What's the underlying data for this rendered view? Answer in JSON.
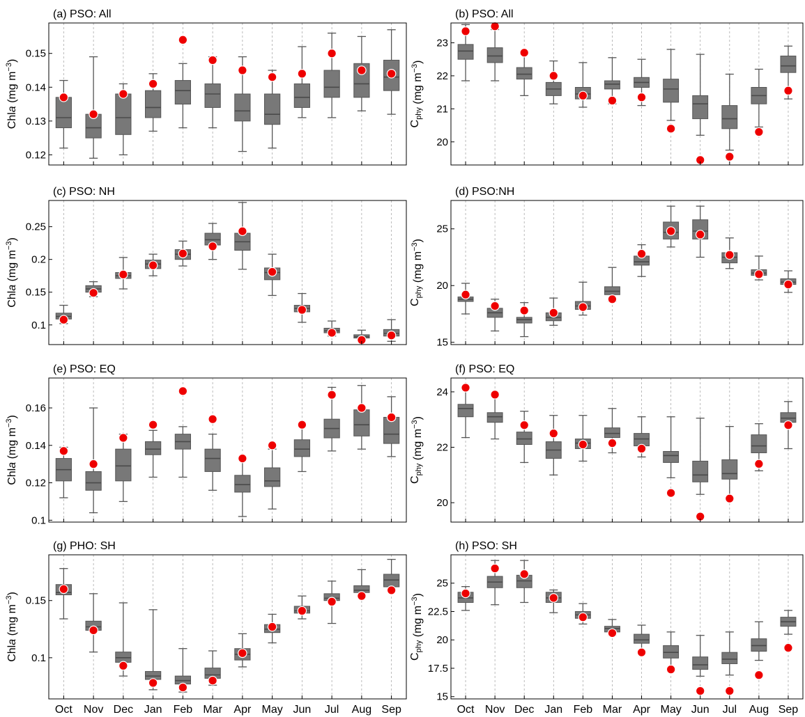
{
  "figure": {
    "months": [
      "Oct",
      "Nov",
      "Dec",
      "Jan",
      "Feb",
      "Mar",
      "Apr",
      "May",
      "Jun",
      "Jul",
      "Aug",
      "Sep"
    ],
    "chla_ylabel": {
      "pre": "Chl",
      "italic": "a",
      "post": "  (mg m",
      "sup": "−3",
      "end": ")"
    },
    "cphy_ylabel": {
      "pre": "C",
      "sub": "phy",
      "post": " (mg m",
      "sup": "−3",
      "end": ")"
    },
    "colors": {
      "box": "#787878",
      "box_edge": "#555555",
      "median": "#4a4a4a",
      "whisker": "#555555",
      "marker": "#ee0000",
      "marker_edge": "#ffffff",
      "grid": "#aaaaaa"
    }
  },
  "chart_data": [
    {
      "type": "box",
      "title": "(a) PSO: All",
      "ylabel_kind": "chla",
      "ylim": [
        0.117,
        0.159
      ],
      "yticks": [
        0.12,
        0.13,
        0.14,
        0.15
      ],
      "ytick_labels": [
        "0.12",
        "0.13",
        "0.14",
        "0.15"
      ],
      "categories": [
        "Oct",
        "Nov",
        "Dec",
        "Jan",
        "Feb",
        "Mar",
        "Apr",
        "May",
        "Jun",
        "Jul",
        "Aug",
        "Sep"
      ],
      "whisker_low": [
        0.122,
        0.119,
        0.12,
        0.127,
        0.128,
        0.128,
        0.121,
        0.122,
        0.131,
        0.131,
        0.133,
        0.132
      ],
      "q1": [
        0.128,
        0.125,
        0.126,
        0.131,
        0.135,
        0.134,
        0.13,
        0.129,
        0.134,
        0.137,
        0.137,
        0.139
      ],
      "median": [
        0.131,
        0.128,
        0.131,
        0.134,
        0.139,
        0.138,
        0.133,
        0.132,
        0.137,
        0.14,
        0.141,
        0.143
      ],
      "q3": [
        0.137,
        0.132,
        0.138,
        0.139,
        0.142,
        0.141,
        0.138,
        0.138,
        0.141,
        0.145,
        0.147,
        0.148
      ],
      "whisker_high": [
        0.142,
        0.149,
        0.141,
        0.144,
        0.147,
        0.149,
        0.149,
        0.145,
        0.152,
        0.156,
        0.155,
        0.157
      ],
      "markers": [
        0.137,
        0.132,
        0.138,
        0.141,
        0.154,
        0.148,
        0.145,
        0.143,
        0.144,
        0.15,
        0.145,
        0.144
      ]
    },
    {
      "type": "box",
      "title": "(b) PSO: All",
      "ylabel_kind": "cphy",
      "ylim": [
        19.3,
        23.6
      ],
      "yticks": [
        20,
        21,
        22,
        23
      ],
      "ytick_labels": [
        "20",
        "21",
        "22",
        "23"
      ],
      "categories": [
        "Oct",
        "Nov",
        "Dec",
        "Jan",
        "Feb",
        "Mar",
        "Apr",
        "May",
        "Jun",
        "Jul",
        "Aug",
        "Sep"
      ],
      "whisker_low": [
        21.85,
        21.85,
        21.4,
        21.15,
        21.05,
        21.15,
        21.1,
        20.65,
        20.2,
        19.75,
        20.45,
        21.3
      ],
      "q1": [
        22.5,
        22.4,
        21.9,
        21.4,
        21.3,
        21.6,
        21.65,
        21.2,
        20.7,
        20.4,
        21.15,
        22.1
      ],
      "median": [
        22.75,
        22.6,
        22.05,
        21.6,
        21.45,
        21.75,
        21.8,
        21.6,
        21.15,
        20.7,
        21.4,
        22.3
      ],
      "q3": [
        22.95,
        22.85,
        22.25,
        21.8,
        21.65,
        21.85,
        21.95,
        21.9,
        21.4,
        21.1,
        21.65,
        22.6
      ],
      "whisker_high": [
        23.55,
        23.4,
        22.75,
        22.45,
        22.4,
        22.55,
        22.5,
        22.8,
        22.65,
        22.05,
        22.2,
        22.9
      ],
      "markers": [
        23.35,
        23.5,
        22.7,
        22.0,
        21.4,
        21.25,
        21.35,
        20.4,
        19.45,
        19.55,
        20.3,
        21.55
      ]
    },
    {
      "type": "box",
      "title": "(c) PSO: NH",
      "ylabel_kind": "chla",
      "ylim": [
        0.07,
        0.29
      ],
      "yticks": [
        0.1,
        0.15,
        0.2,
        0.25
      ],
      "ytick_labels": [
        "0.1",
        "0.15",
        "0.2",
        "0.25"
      ],
      "categories": [
        "Oct",
        "Nov",
        "Dec",
        "Jan",
        "Feb",
        "Mar",
        "Apr",
        "May",
        "Jun",
        "Jul",
        "Aug",
        "Sep"
      ],
      "whisker_low": [
        0.102,
        0.143,
        0.155,
        0.175,
        0.19,
        0.2,
        0.185,
        0.145,
        0.104,
        0.083,
        0.075,
        0.075
      ],
      "q1": [
        0.109,
        0.15,
        0.171,
        0.186,
        0.2,
        0.222,
        0.214,
        0.169,
        0.12,
        0.088,
        0.08,
        0.083
      ],
      "median": [
        0.113,
        0.155,
        0.175,
        0.193,
        0.208,
        0.23,
        0.227,
        0.18,
        0.125,
        0.091,
        0.082,
        0.087
      ],
      "q3": [
        0.118,
        0.16,
        0.18,
        0.199,
        0.215,
        0.24,
        0.24,
        0.187,
        0.13,
        0.095,
        0.085,
        0.093
      ],
      "whisker_high": [
        0.13,
        0.166,
        0.203,
        0.208,
        0.228,
        0.255,
        0.287,
        0.208,
        0.148,
        0.106,
        0.092,
        0.108
      ],
      "markers": [
        0.108,
        0.149,
        0.177,
        0.191,
        0.209,
        0.22,
        0.243,
        0.181,
        0.123,
        0.088,
        0.077,
        0.084
      ]
    },
    {
      "type": "box",
      "title": "(d) PSO:NH",
      "ylabel_kind": "cphy",
      "ylim": [
        14.8,
        27.5
      ],
      "yticks": [
        15,
        20,
        25
      ],
      "ytick_labels": [
        "15",
        "20",
        "25"
      ],
      "categories": [
        "Oct",
        "Nov",
        "Dec",
        "Jan",
        "Feb",
        "Mar",
        "Apr",
        "May",
        "Jun",
        "Jul",
        "Aug",
        "Sep"
      ],
      "whisker_low": [
        17.5,
        16.0,
        15.5,
        16.5,
        17.4,
        18.6,
        20.8,
        23.4,
        22.5,
        21.5,
        20.5,
        19.4
      ],
      "q1": [
        18.6,
        17.2,
        16.7,
        16.9,
        17.9,
        19.2,
        21.8,
        24.1,
        24.1,
        22.0,
        20.9,
        20.1
      ],
      "median": [
        18.8,
        17.6,
        17.0,
        17.2,
        18.2,
        19.5,
        22.1,
        24.7,
        24.8,
        22.5,
        21.1,
        20.3
      ],
      "q3": [
        19.0,
        18.0,
        17.2,
        17.6,
        18.6,
        19.9,
        22.6,
        25.6,
        25.8,
        22.9,
        21.4,
        20.6
      ],
      "whisker_high": [
        20.2,
        18.8,
        18.5,
        18.9,
        20.3,
        21.6,
        23.6,
        27.0,
        27.0,
        24.2,
        22.6,
        21.3
      ],
      "markers": [
        19.2,
        18.2,
        17.8,
        17.6,
        18.1,
        18.8,
        22.8,
        24.8,
        24.5,
        22.7,
        21.0,
        20.1
      ]
    },
    {
      "type": "box",
      "title": "(e) PSO: EQ",
      "ylabel_kind": "chla",
      "ylim": [
        0.099,
        0.176
      ],
      "yticks": [
        0.1,
        0.12,
        0.14,
        0.16
      ],
      "ytick_labels": [
        "0.1",
        "0.12",
        "0.14",
        "0.16"
      ],
      "categories": [
        "Oct",
        "Nov",
        "Dec",
        "Jan",
        "Feb",
        "Mar",
        "Apr",
        "May",
        "Jun",
        "Jul",
        "Aug",
        "Sep"
      ],
      "whisker_low": [
        0.112,
        0.104,
        0.11,
        0.123,
        0.123,
        0.116,
        0.102,
        0.106,
        0.126,
        0.137,
        0.138,
        0.134
      ],
      "q1": [
        0.121,
        0.116,
        0.121,
        0.135,
        0.138,
        0.126,
        0.115,
        0.118,
        0.134,
        0.144,
        0.145,
        0.141
      ],
      "median": [
        0.127,
        0.12,
        0.129,
        0.138,
        0.142,
        0.133,
        0.119,
        0.121,
        0.138,
        0.149,
        0.151,
        0.146
      ],
      "q3": [
        0.133,
        0.126,
        0.138,
        0.142,
        0.146,
        0.138,
        0.124,
        0.128,
        0.143,
        0.154,
        0.159,
        0.155
      ],
      "whisker_high": [
        0.139,
        0.16,
        0.146,
        0.148,
        0.15,
        0.146,
        0.133,
        0.138,
        0.151,
        0.171,
        0.172,
        0.166
      ],
      "markers": [
        0.137,
        0.13,
        0.144,
        0.151,
        0.169,
        0.154,
        0.133,
        0.14,
        0.151,
        0.167,
        0.16,
        0.155
      ]
    },
    {
      "type": "box",
      "title": "(f) PSO: EQ",
      "ylabel_kind": "cphy",
      "ylim": [
        19.3,
        24.5
      ],
      "yticks": [
        20,
        22,
        24
      ],
      "ytick_labels": [
        "20",
        "22",
        "24"
      ],
      "categories": [
        "Oct",
        "Nov",
        "Dec",
        "Jan",
        "Feb",
        "Mar",
        "Apr",
        "May",
        "Jun",
        "Jul",
        "Aug",
        "Sep"
      ],
      "whisker_low": [
        22.35,
        22.3,
        21.45,
        21.0,
        21.5,
        21.8,
        21.65,
        20.9,
        20.3,
        20.15,
        21.15,
        21.95
      ],
      "q1": [
        23.1,
        22.9,
        22.1,
        21.6,
        21.95,
        22.35,
        22.05,
        21.45,
        20.75,
        20.85,
        21.8,
        22.9
      ],
      "median": [
        23.4,
        23.1,
        22.3,
        21.9,
        22.15,
        22.5,
        22.3,
        21.7,
        21.0,
        21.05,
        22.05,
        23.05
      ],
      "q3": [
        23.55,
        23.25,
        22.55,
        22.2,
        22.3,
        22.7,
        22.5,
        21.85,
        21.5,
        21.55,
        22.45,
        23.25
      ],
      "whisker_high": [
        24.15,
        23.95,
        23.3,
        23.15,
        23.15,
        23.4,
        23.1,
        23.1,
        23.05,
        22.75,
        22.85,
        23.65
      ],
      "markers": [
        24.15,
        23.9,
        22.8,
        22.5,
        22.1,
        22.15,
        21.95,
        20.35,
        19.5,
        20.15,
        21.4,
        22.8
      ]
    },
    {
      "type": "box",
      "title": "(g) PHO: SH",
      "ylabel_kind": "chla",
      "ylim": [
        0.064,
        0.19
      ],
      "yticks": [
        0.1,
        0.15
      ],
      "ytick_labels": [
        "0.1",
        "0.15"
      ],
      "categories": [
        "Oct",
        "Nov",
        "Dec",
        "Jan",
        "Feb",
        "Mar",
        "Apr",
        "May",
        "Jun",
        "Jul",
        "Aug",
        "Sep"
      ],
      "whisker_low": [
        0.134,
        0.105,
        0.084,
        0.072,
        0.07,
        0.076,
        0.092,
        0.113,
        0.134,
        0.13,
        0.153,
        0.158
      ],
      "q1": [
        0.155,
        0.124,
        0.096,
        0.081,
        0.077,
        0.082,
        0.098,
        0.122,
        0.139,
        0.15,
        0.157,
        0.162
      ],
      "median": [
        0.157,
        0.127,
        0.1,
        0.084,
        0.08,
        0.085,
        0.103,
        0.125,
        0.141,
        0.152,
        0.159,
        0.168
      ],
      "q3": [
        0.164,
        0.132,
        0.105,
        0.088,
        0.084,
        0.091,
        0.108,
        0.129,
        0.145,
        0.156,
        0.163,
        0.173
      ],
      "whisker_high": [
        0.178,
        0.156,
        0.148,
        0.142,
        0.108,
        0.106,
        0.121,
        0.138,
        0.154,
        0.167,
        0.177,
        0.186
      ],
      "markers": [
        0.16,
        0.124,
        0.093,
        0.078,
        0.074,
        0.08,
        0.104,
        0.127,
        0.141,
        0.149,
        0.154,
        0.159
      ]
    },
    {
      "type": "box",
      "title": "(h) PSO: SH",
      "ylabel_kind": "cphy",
      "ylim": [
        14.8,
        27.5
      ],
      "yticks": [
        15,
        17.5,
        20,
        22.5,
        25
      ],
      "ytick_labels": [
        "15",
        "17.5",
        "20",
        "22.5",
        "25"
      ],
      "categories": [
        "Oct",
        "Nov",
        "Dec",
        "Jan",
        "Feb",
        "Mar",
        "Apr",
        "May",
        "Jun",
        "Jul",
        "Aug",
        "Sep"
      ],
      "whisker_low": [
        22.6,
        23.1,
        23.3,
        22.4,
        21.4,
        20.4,
        19.0,
        17.4,
        16.8,
        16.9,
        18.2,
        20.5
      ],
      "q1": [
        23.3,
        24.6,
        24.6,
        23.3,
        21.9,
        20.7,
        19.7,
        18.4,
        17.4,
        17.9,
        19.0,
        21.2
      ],
      "median": [
        23.7,
        25.1,
        25.2,
        23.7,
        22.2,
        21.0,
        20.0,
        18.9,
        17.8,
        18.3,
        19.5,
        21.6
      ],
      "q3": [
        24.2,
        25.6,
        25.7,
        24.2,
        22.5,
        21.2,
        20.5,
        19.5,
        18.5,
        18.9,
        20.1,
        22.0
      ],
      "whisker_high": [
        24.7,
        27.0,
        27.0,
        24.4,
        23.2,
        21.8,
        21.3,
        20.7,
        20.4,
        20.7,
        21.6,
        22.6
      ],
      "markers": [
        24.1,
        26.3,
        25.8,
        23.7,
        22.0,
        20.6,
        18.9,
        17.4,
        15.5,
        15.5,
        16.9,
        19.3
      ]
    }
  ]
}
